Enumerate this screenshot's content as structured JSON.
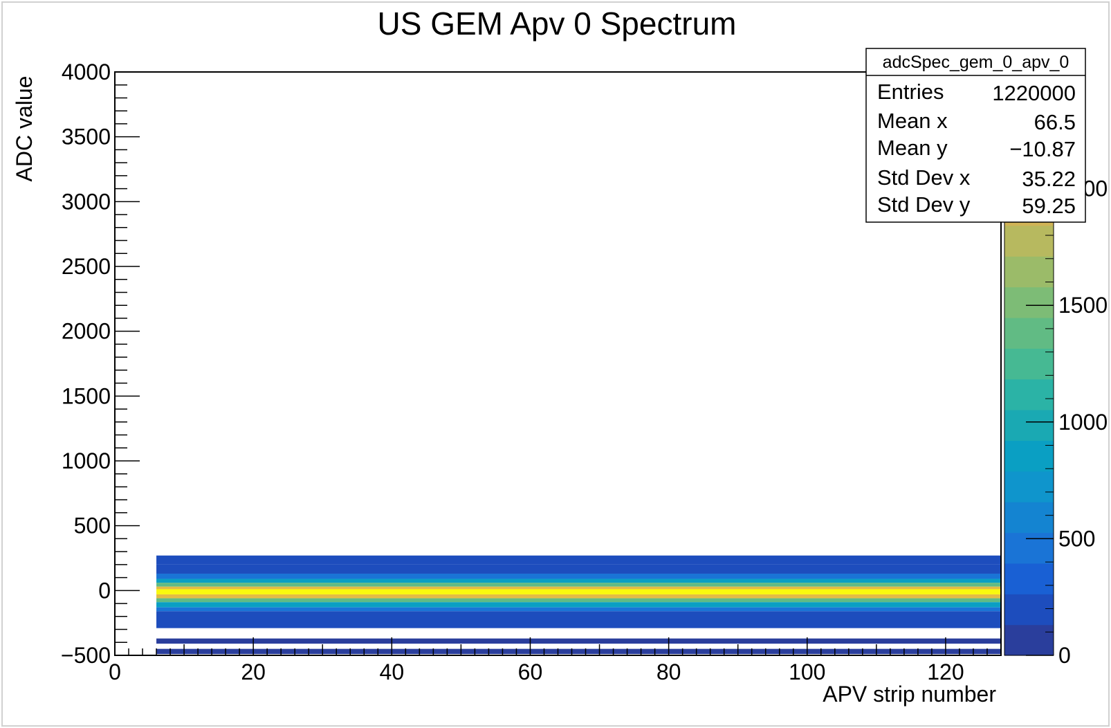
{
  "chart_data": {
    "type": "heatmap",
    "title": "US GEM Apv 0 Spectrum",
    "xlabel": "APV strip number",
    "ylabel": "ADC value",
    "xlim": [
      0,
      128
    ],
    "ylim": [
      -500,
      4000
    ],
    "x_ticks": [
      0,
      20,
      40,
      60,
      80,
      100,
      120
    ],
    "y_ticks": [
      -500,
      0,
      500,
      1000,
      1500,
      2000,
      2500,
      3000,
      3500,
      4000
    ],
    "x_range_filled": [
      6,
      128
    ],
    "bands": [
      {
        "y0": 200,
        "y1": 270,
        "z": 150
      },
      {
        "y0": 130,
        "y1": 200,
        "z": 200
      },
      {
        "y0": 90,
        "y1": 130,
        "z": 500
      },
      {
        "y0": 60,
        "y1": 90,
        "z": 900
      },
      {
        "y0": 30,
        "y1": 60,
        "z": 1400
      },
      {
        "y0": 10,
        "y1": 30,
        "z": 2100
      },
      {
        "y0": -30,
        "y1": 10,
        "z": 2500
      },
      {
        "y0": -60,
        "y1": -30,
        "z": 2100
      },
      {
        "y0": -90,
        "y1": -60,
        "z": 1400
      },
      {
        "y0": -130,
        "y1": -90,
        "z": 900
      },
      {
        "y0": -160,
        "y1": -130,
        "z": 500
      },
      {
        "y0": -290,
        "y1": -160,
        "z": 150
      },
      {
        "y0": -410,
        "y1": -370,
        "z": 120
      },
      {
        "y0": -490,
        "y1": -450,
        "z": 120
      }
    ],
    "zlim": [
      0,
      2500
    ],
    "z_ticks": [
      0,
      500,
      1000,
      1500,
      2000
    ],
    "z_tick_labels": [
      "0",
      "500",
      "1000",
      "1500",
      "2000"
    ],
    "palette": [
      "#2a3e9c",
      "#1d4dbd",
      "#1960d4",
      "#1a74d6",
      "#1484d1",
      "#0f95cc",
      "#0a9fc3",
      "#1aa9b3",
      "#2bb3a6",
      "#46b993",
      "#61bb84",
      "#7dbc76",
      "#9bbb69",
      "#b7b95f",
      "#d0b356",
      "#e3bb45",
      "#f0cd2d",
      "#f8e21a",
      "#f9f90e"
    ],
    "stats": {
      "name": "adcSpec_gem_0_apv_0",
      "rows": [
        {
          "label": "Entries",
          "value": "1220000"
        },
        {
          "label": "Mean x",
          "value": "66.5"
        },
        {
          "label": "Mean y",
          "value": "−10.87"
        },
        {
          "label": "Std Dev x",
          "value": "35.22"
        },
        {
          "label": "Std Dev y",
          "value": "59.25"
        }
      ]
    }
  }
}
